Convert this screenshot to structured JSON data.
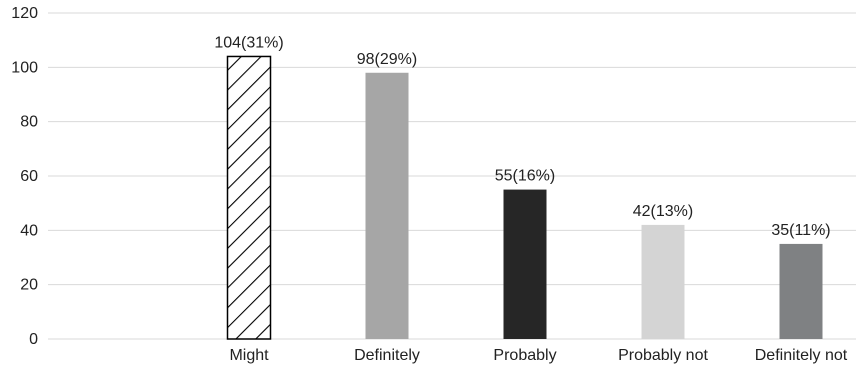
{
  "chart_data": {
    "type": "bar",
    "categories": [
      "Might",
      "Definitely",
      "Probably",
      "Probably not",
      "Definitely not"
    ],
    "values": [
      104,
      98,
      55,
      42,
      35
    ],
    "data_labels": [
      "104(31%)",
      "98(29%)",
      "55(16%)",
      "42(13%)",
      "35(11%)"
    ],
    "bar_styles": [
      {
        "fill": "#ffffff",
        "stroke": "#000000",
        "pattern": "diagonal-hatch"
      },
      {
        "fill": "#a6a6a6",
        "stroke": "none",
        "pattern": "solid"
      },
      {
        "fill": "#262626",
        "stroke": "none",
        "pattern": "solid"
      },
      {
        "fill": "#d4d4d4",
        "stroke": "none",
        "pattern": "solid"
      },
      {
        "fill": "#7f8183",
        "stroke": "none",
        "pattern": "solid"
      }
    ],
    "yticks": [
      0,
      20,
      40,
      60,
      80,
      100,
      120
    ],
    "ylim": [
      0,
      120
    ],
    "title": "",
    "xlabel": "",
    "ylabel": "",
    "grid": true,
    "legend": "none"
  }
}
